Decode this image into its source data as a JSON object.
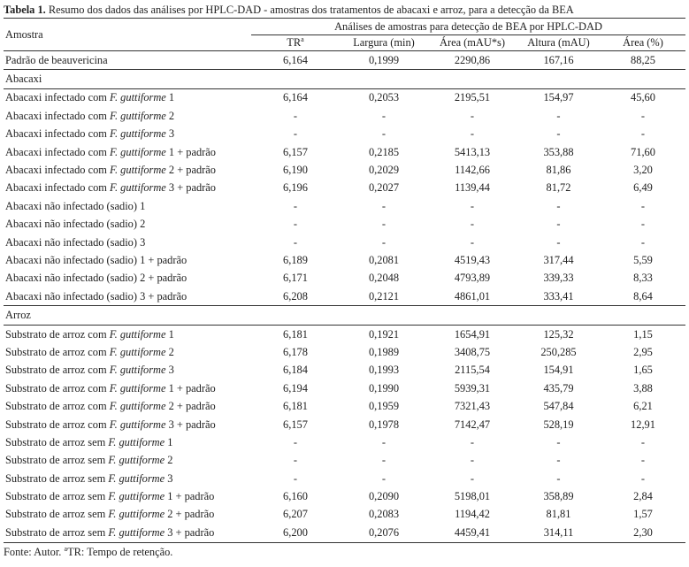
{
  "caption": {
    "label": "Tabela 1.",
    "text": " Resumo dos dados das análises por HPLC-DAD - amostras dos tratamentos de abacaxi e arroz, para a detecção da BEA"
  },
  "header": {
    "sample": "Amostra",
    "group": "Análises de amostras para detecção de BEA por HPLC-DAD",
    "tr": "TR",
    "tr_sup": "a",
    "width": "Largura (min)",
    "area": "Área (mAU*s)",
    "height": "Altura (mAU)",
    "area_pct": "Área (%)"
  },
  "rows": [
    {
      "type": "data",
      "pre": "Padrão de beauvericina",
      "it": "",
      "post": "",
      "tr": "6,164",
      "w": "0,1999",
      "a": "2290,86",
      "h": "167,16",
      "p": "88,25"
    },
    {
      "type": "section",
      "pre": "Abacaxi"
    },
    {
      "type": "data",
      "pre": "Abacaxi infectado com ",
      "it": "F. guttiforme",
      "post": " 1",
      "tr": "6,164",
      "w": "0,2053",
      "a": "2195,51",
      "h": "154,97",
      "p": "45,60"
    },
    {
      "type": "data",
      "pre": "Abacaxi infectado com ",
      "it": "F. guttiforme",
      "post": " 2",
      "tr": "-",
      "w": "-",
      "a": "-",
      "h": "-",
      "p": "-"
    },
    {
      "type": "data",
      "pre": "Abacaxi infectado com ",
      "it": "F. guttiforme",
      "post": " 3",
      "tr": "-",
      "w": "-",
      "a": "-",
      "h": "-",
      "p": "-"
    },
    {
      "type": "data",
      "pre": "Abacaxi infectado com ",
      "it": "F. guttiforme",
      "post": " 1 + padrão",
      "tr": "6,157",
      "w": "0,2185",
      "a": "5413,13",
      "h": "353,88",
      "p": "71,60"
    },
    {
      "type": "data",
      "pre": "Abacaxi infectado com ",
      "it": "F. guttiforme",
      "post": " 2 + padrão",
      "tr": "6,190",
      "w": "0,2029",
      "a": "1142,66",
      "h": "81,86",
      "p": "3,20"
    },
    {
      "type": "data",
      "pre": "Abacaxi infectado com ",
      "it": "F. guttiforme",
      "post": " 3 + padrão",
      "tr": "6,196",
      "w": "0,2027",
      "a": "1139,44",
      "h": "81,72",
      "p": "6,49"
    },
    {
      "type": "data",
      "pre": "Abacaxi não infectado (sadio) 1",
      "it": "",
      "post": "",
      "tr": "-",
      "w": "-",
      "a": "-",
      "h": "-",
      "p": "-"
    },
    {
      "type": "data",
      "pre": "Abacaxi não infectado (sadio) 2",
      "it": "",
      "post": "",
      "tr": "-",
      "w": "-",
      "a": "-",
      "h": "-",
      "p": "-"
    },
    {
      "type": "data",
      "pre": "Abacaxi não infectado (sadio) 3",
      "it": "",
      "post": "",
      "tr": "-",
      "w": "-",
      "a": "-",
      "h": "-",
      "p": "-"
    },
    {
      "type": "data",
      "pre": "Abacaxi não infectado (sadio) 1 + padrão",
      "it": "",
      "post": "",
      "tr": "6,189",
      "w": "0,2081",
      "a": "4519,43",
      "h": "317,44",
      "p": "5,59"
    },
    {
      "type": "data",
      "pre": "Abacaxi não infectado (sadio) 2 + padrão",
      "it": "",
      "post": "",
      "tr": "6,171",
      "w": "0,2048",
      "a": "4793,89",
      "h": "339,33",
      "p": "8,33"
    },
    {
      "type": "data",
      "pre": "Abacaxi não infectado (sadio) 3 + padrão",
      "it": "",
      "post": "",
      "tr": "6,208",
      "w": "0,2121",
      "a": "4861,01",
      "h": "333,41",
      "p": "8,64"
    },
    {
      "type": "section",
      "pre": "Arroz"
    },
    {
      "type": "data",
      "pre": "Substrato de arroz com ",
      "it": "F. guttiforme",
      "post": " 1",
      "tr": "6,181",
      "w": "0,1921",
      "a": "1654,91",
      "h": "125,32",
      "p": "1,15"
    },
    {
      "type": "data",
      "pre": "Substrato de arroz com ",
      "it": "F. guttiforme",
      "post": " 2",
      "tr": "6,178",
      "w": "0,1989",
      "a": "3408,75",
      "h": "250,285",
      "p": "2,95"
    },
    {
      "type": "data",
      "pre": "Substrato de arroz com ",
      "it": "F. guttiforme",
      "post": " 3",
      "tr": "6,184",
      "w": "0,1993",
      "a": "2115,54",
      "h": "154,91",
      "p": "1,65"
    },
    {
      "type": "data",
      "pre": "Substrato de arroz com ",
      "it": "F. guttiforme",
      "post": " 1 + padrão",
      "tr": "6,194",
      "w": "0,1990",
      "a": "5939,31",
      "h": "435,79",
      "p": "3,88"
    },
    {
      "type": "data",
      "pre": "Substrato de arroz com ",
      "it": "F. guttiforme",
      "post": " 2 + padrão",
      "tr": "6,181",
      "w": "0,1959",
      "a": "7321,43",
      "h": "547,84",
      "p": "6,21"
    },
    {
      "type": "data",
      "pre": "Substrato de arroz com ",
      "it": "F. guttiforme",
      "post": " 3 + padrão",
      "tr": "6,157",
      "w": "0,1978",
      "a": "7142,47",
      "h": "528,19",
      "p": "12,91"
    },
    {
      "type": "data",
      "pre": "Substrato de arroz sem ",
      "it": "F. guttiforme",
      "post": " 1",
      "tr": "-",
      "w": "-",
      "a": "-",
      "h": "-",
      "p": "-"
    },
    {
      "type": "data",
      "pre": "Substrato de arroz sem ",
      "it": "F. guttiforme",
      "post": " 2",
      "tr": "-",
      "w": "-",
      "a": "-",
      "h": "-",
      "p": "-"
    },
    {
      "type": "data",
      "pre": "Substrato de arroz sem ",
      "it": "F. guttiforme",
      "post": " 3",
      "tr": "-",
      "w": "-",
      "a": "-",
      "h": "-",
      "p": "-"
    },
    {
      "type": "data",
      "pre": "Substrato de arroz sem ",
      "it": "F. guttiforme",
      "post": " 1 + padrão",
      "tr": "6,160",
      "w": "0,2090",
      "a": "5198,01",
      "h": "358,89",
      "p": "2,84"
    },
    {
      "type": "data",
      "pre": "Substrato de arroz sem ",
      "it": "F. guttiforme",
      "post": " 2 + padrão",
      "tr": "6,207",
      "w": "0,2083",
      "a": "1194,42",
      "h": "81,81",
      "p": "1,57"
    },
    {
      "type": "data",
      "pre": "Substrato de arroz sem ",
      "it": "F. guttiforme",
      "post": " 3 + padrão",
      "tr": "6,200",
      "w": "0,2076",
      "a": "4459,41",
      "h": "314,11",
      "p": "2,30"
    }
  ],
  "footer": {
    "source": "Fonte: Autor. ",
    "sup": "a",
    "note": "TR: Tempo de retenção."
  }
}
